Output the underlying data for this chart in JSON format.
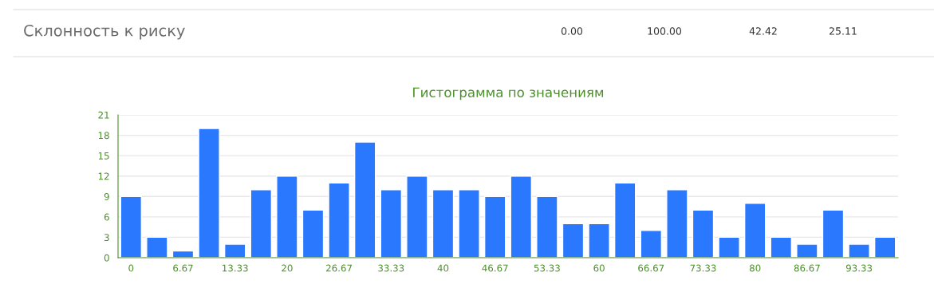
{
  "chart_data": {
    "type": "bar",
    "title": "Гистограмма по значениям",
    "categories": [
      "0",
      null,
      "6.67",
      null,
      "13.33",
      null,
      "20",
      null,
      "26.67",
      null,
      "33.33",
      null,
      "40",
      null,
      "46.67",
      null,
      "53.33",
      null,
      "60",
      null,
      "66.67",
      null,
      "73.33",
      null,
      "80",
      null,
      "86.67",
      null,
      "93.33",
      null
    ],
    "values": [
      9,
      3,
      1,
      19,
      2,
      10,
      12,
      7,
      11,
      17,
      10,
      12,
      10,
      10,
      9,
      12,
      9,
      5,
      5,
      11,
      4,
      10,
      7,
      3,
      8,
      3,
      2,
      7,
      2,
      3
    ],
    "color": "#2a78fd",
    "ylim": [
      0,
      21
    ],
    "yticks": [
      0,
      3,
      6,
      9,
      12,
      15,
      18,
      21
    ],
    "grid": "y",
    "annotations": [
      "Склонность к риску",
      "0.00",
      "100.00",
      "42.42",
      "25.11"
    ]
  }
}
